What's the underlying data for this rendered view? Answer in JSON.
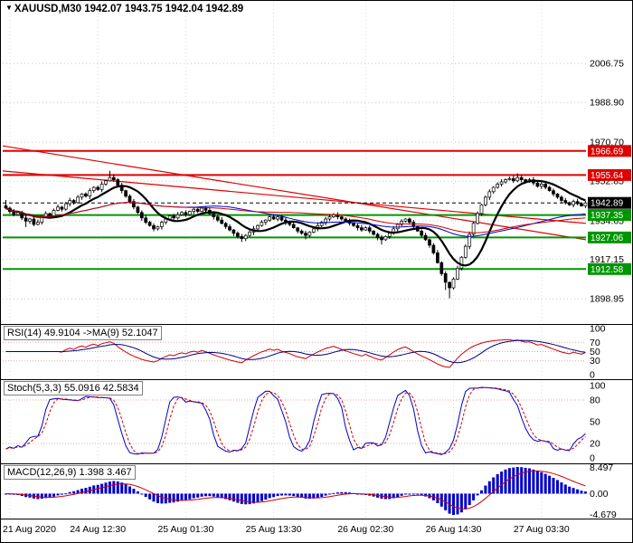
{
  "header": {
    "icon": "▼",
    "text": "XAUUSD,M30 1942.07 1943.75 1942.04 1942.89"
  },
  "time_axis": {
    "labels": [
      "21 Aug 2020",
      "24 Aug 12:30",
      "25 Aug 01:30",
      "25 Aug 13:30",
      "26 Aug 02:30",
      "26 Aug 14:30",
      "27 Aug 03:30"
    ],
    "candle_index": [
      1,
      23,
      45,
      67,
      90,
      112,
      134
    ]
  },
  "chart_data": [
    {
      "type": "candlestick",
      "symbol": "XAUUSD",
      "timeframe": "M30",
      "ohlc_display": {
        "open": "1942.07",
        "high": "1943.75",
        "low": "1942.04",
        "close": "1942.89"
      },
      "y_tick_labels": [
        "2006.75",
        "1988.90",
        "1970.70",
        "1952.85",
        "1934.65",
        "1917.15",
        "1898.95"
      ],
      "y_tick_prices": [
        2006.75,
        1988.9,
        1970.7,
        1952.85,
        1934.65,
        1917.15,
        1898.95
      ],
      "first_open": 1941.5,
      "closes": [
        1940.5,
        1939.0,
        1937.5,
        1938.5,
        1936.0,
        1934.5,
        1935.5,
        1933.0,
        1934.0,
        1936.5,
        1938.0,
        1937.0,
        1939.5,
        1941.0,
        1940.0,
        1942.5,
        1944.0,
        1943.0,
        1945.5,
        1947.0,
        1946.0,
        1948.5,
        1950.0,
        1949.0,
        1951.5,
        1953.0,
        1954.5,
        1953.5,
        1951.0,
        1948.5,
        1946.0,
        1943.5,
        1941.0,
        1938.5,
        1936.0,
        1934.0,
        1932.5,
        1931.0,
        1932.0,
        1934.0,
        1935.5,
        1937.0,
        1936.0,
        1937.5,
        1938.5,
        1937.5,
        1939.0,
        1940.0,
        1939.0,
        1940.5,
        1939.5,
        1938.0,
        1936.5,
        1935.0,
        1933.5,
        1932.0,
        1930.5,
        1929.0,
        1927.5,
        1926.5,
        1928.0,
        1929.5,
        1931.0,
        1932.5,
        1934.0,
        1935.0,
        1936.5,
        1935.5,
        1936.5,
        1935.0,
        1934.0,
        1933.0,
        1931.5,
        1930.0,
        1929.0,
        1928.0,
        1929.5,
        1931.0,
        1932.5,
        1934.0,
        1935.5,
        1936.5,
        1937.5,
        1936.5,
        1935.5,
        1934.5,
        1933.5,
        1932.5,
        1931.5,
        1930.5,
        1931.5,
        1930.0,
        1928.5,
        1927.0,
        1926.0,
        1927.5,
        1929.0,
        1931.0,
        1933.0,
        1934.5,
        1935.5,
        1934.0,
        1932.0,
        1930.0,
        1928.0,
        1926.0,
        1923.5,
        1920.0,
        1915.5,
        1910.5,
        1906.5,
        1904.0,
        1908.0,
        1913.0,
        1918.0,
        1923.0,
        1928.5,
        1933.5,
        1938.0,
        1942.0,
        1945.5,
        1948.0,
        1950.0,
        1951.5,
        1952.5,
        1953.5,
        1954.0,
        1953.0,
        1954.5,
        1953.5,
        1952.5,
        1953.5,
        1952.0,
        1950.5,
        1951.5,
        1950.0,
        1948.5,
        1947.0,
        1945.5,
        1944.0,
        1943.0,
        1942.0,
        1943.5,
        1942.5,
        1941.5,
        1942.89
      ],
      "wick_overrides": {
        "0": {
          "h": 1944.2
        },
        "5": {
          "l": 1931.8
        },
        "26": {
          "h": 1957.6
        },
        "27": {
          "h": 1955.9
        },
        "59": {
          "l": 1925.0
        },
        "75": {
          "l": 1926.2
        },
        "94": {
          "l": 1923.8
        },
        "110": {
          "l": 1903.0
        },
        "111": {
          "l": 1899.2
        },
        "128": {
          "h": 1956.4
        }
      },
      "candle_colors": {
        "bull_fill": "#ffffff",
        "bear_fill": "#000000",
        "stroke": "#000000"
      },
      "levels": [
        {
          "price": 1966.69,
          "label": "1966.69",
          "color": "#e00000",
          "width": 2,
          "style": "solid"
        },
        {
          "price": 1955.64,
          "label": "1955.64",
          "color": "#e00000",
          "width": 2,
          "style": "solid"
        },
        {
          "price": 1942.89,
          "label": "1942.89",
          "color": "#000000",
          "width": 1,
          "style": "dash"
        },
        {
          "price": 1937.35,
          "label": "1937.35",
          "color": "#009600",
          "width": 2,
          "style": "solid"
        },
        {
          "price": 1927.06,
          "label": "1927.06",
          "color": "#009600",
          "width": 2,
          "style": "solid"
        },
        {
          "price": 1912.58,
          "label": "1912.58",
          "color": "#009600",
          "width": 2,
          "style": "solid"
        }
      ],
      "trendlines": [
        {
          "price_left": 1969.0,
          "price_right": 1926.0,
          "color": "#e00000"
        },
        {
          "price_left": 1957.5,
          "price_right": 1933.5,
          "color": "#e00000"
        }
      ],
      "moving_averages": [
        {
          "name": "ma-fast-black",
          "period": 10,
          "color": "#000000",
          "width": 2.2
        },
        {
          "name": "ma-mid-blue",
          "period": 44,
          "color": "#0000cc",
          "width": 1
        },
        {
          "name": "ma-slow-red",
          "period": 66,
          "color": "#cc0000",
          "width": 1
        }
      ]
    },
    {
      "type": "line",
      "name": "RSI",
      "label": "RSI(14) 49.9104  ->MA(9) 52.1047",
      "params": {
        "period": 14,
        "ma_period": 9
      },
      "current": {
        "rsi": "49.9104",
        "ma": "52.1047"
      },
      "y_ticks": [
        100,
        70,
        50,
        30,
        0
      ],
      "level_lines": [
        70,
        50,
        30
      ],
      "colors": {
        "main": "#cc0000",
        "signal": "#000080"
      }
    },
    {
      "type": "line",
      "name": "Stochastic",
      "label": "Stoch(5,3,3) 55.0916 42.5834",
      "params": {
        "k": 5,
        "d": 3,
        "slowing": 3
      },
      "current": {
        "k": "55.0916",
        "d": "42.5834"
      },
      "y_ticks": [
        100,
        80,
        50,
        20,
        0
      ],
      "level_lines": [
        80,
        20
      ],
      "colors": {
        "main": "#0000cc",
        "signal": "#cc0000"
      }
    },
    {
      "type": "histogram",
      "name": "MACD",
      "label": "MACD(12,26,9) 1.398 3.467",
      "params": {
        "fast": 12,
        "slow": 26,
        "signal": 9
      },
      "current": {
        "macd": "1.398",
        "signal": "3.467"
      },
      "y_tick_labels": [
        "8.497",
        "0.00",
        "-4.679"
      ],
      "colors": {
        "histogram": "#0000cc",
        "signal": "#cc0000"
      }
    }
  ]
}
